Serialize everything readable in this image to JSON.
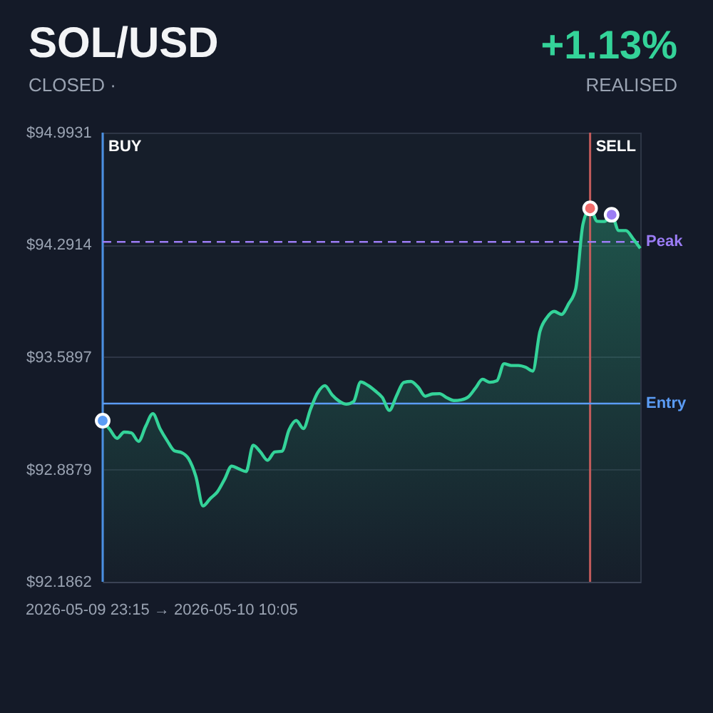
{
  "chart_data": {
    "type": "area",
    "title": "SOL/USD",
    "subtitle": "CLOSED ·",
    "annotations": [
      "+1.13%",
      "REALISED",
      "2026-05-09 23:15 → 2026-05-10 10:05"
    ],
    "categories": [
      null,
      null,
      null,
      null,
      null,
      null,
      null,
      null,
      null,
      null,
      null,
      null,
      null,
      null,
      null,
      null,
      null,
      null,
      null,
      null,
      null,
      null,
      null,
      null,
      null,
      null,
      null,
      null,
      null,
      null,
      null,
      null,
      null,
      null,
      null,
      null,
      null,
      null,
      null,
      null,
      null,
      null,
      null,
      null,
      null,
      null,
      null,
      null,
      null,
      null,
      null,
      null,
      null,
      null,
      null,
      null,
      null,
      null,
      null,
      null,
      null,
      null,
      null,
      null,
      null,
      null,
      null,
      null,
      null,
      null,
      null,
      null,
      null,
      null,
      null,
      null
    ],
    "ylim": [
      92.1862,
      94.9931
    ],
    "yticks": [
      {
        "value": 92.1862,
        "label": "$92.1862"
      },
      {
        "value": 92.8879,
        "label": "$92.8879"
      },
      {
        "value": 93.5897,
        "label": "$93.5897"
      },
      {
        "value": 94.2914,
        "label": "$94.2914"
      },
      {
        "value": 94.9931,
        "label": "$94.9931"
      }
    ],
    "tick_labels": "y",
    "grid": "y",
    "series": [
      {
        "color": "#34d399",
        "values": [
          93.193,
          93.138,
          93.083,
          93.122,
          93.117,
          93.064,
          93.158,
          93.237,
          93.143,
          93.068,
          93.005,
          92.994,
          92.954,
          92.845,
          92.66,
          92.706,
          92.748,
          92.826,
          92.909,
          92.892,
          92.875,
          93.04,
          92.998,
          92.946,
          92.998,
          93.002,
          93.135,
          93.194,
          93.144,
          93.265,
          93.368,
          93.412,
          93.355,
          93.315,
          93.296,
          93.312,
          93.435,
          93.414,
          93.38,
          93.339,
          93.258,
          93.349,
          93.432,
          93.438,
          93.403,
          93.346,
          93.36,
          93.362,
          93.337,
          93.319,
          93.323,
          93.341,
          93.396,
          93.452,
          93.433,
          93.443,
          93.549,
          93.538,
          93.538,
          93.527,
          93.503,
          93.75,
          93.839,
          93.876,
          93.857,
          93.923,
          94.019,
          94.42,
          94.52,
          94.439,
          94.438,
          94.48,
          94.381,
          94.381,
          94.33,
          94.27
        ]
      },
      {
        "type": "scatter",
        "marker": "circle",
        "color": "#5b9cf5",
        "values": [
          93.193,
          null,
          null,
          null,
          null,
          null,
          null,
          null,
          null,
          null,
          null,
          null,
          null,
          null,
          null,
          null,
          null,
          null,
          null,
          null,
          null,
          null,
          null,
          null,
          null,
          null,
          null,
          null,
          null,
          null,
          null,
          null,
          null,
          null,
          null,
          null,
          null,
          null,
          null,
          null,
          null,
          null,
          null,
          null,
          null,
          null,
          null,
          null,
          null,
          null,
          null,
          null,
          null,
          null,
          null,
          null,
          null,
          null,
          null,
          null,
          null,
          null,
          null,
          null,
          null,
          null,
          null,
          null,
          null,
          null,
          null,
          null,
          null,
          null,
          null,
          null
        ]
      },
      {
        "type": "scatter",
        "marker": "circle",
        "color": "#f06a6a",
        "values": [
          null,
          null,
          null,
          null,
          null,
          null,
          null,
          null,
          null,
          null,
          null,
          null,
          null,
          null,
          null,
          null,
          null,
          null,
          null,
          null,
          null,
          null,
          null,
          null,
          null,
          null,
          null,
          null,
          null,
          null,
          null,
          null,
          null,
          null,
          null,
          null,
          null,
          null,
          null,
          null,
          null,
          null,
          null,
          null,
          null,
          null,
          null,
          null,
          null,
          null,
          null,
          null,
          null,
          null,
          null,
          null,
          null,
          null,
          null,
          null,
          null,
          null,
          null,
          null,
          null,
          null,
          null,
          null,
          94.52,
          null,
          null,
          null,
          null,
          null,
          null,
          null
        ]
      },
      {
        "type": "scatter",
        "marker": "circle",
        "color": "#9b7cf5",
        "values": [
          null,
          null,
          null,
          null,
          null,
          null,
          null,
          null,
          null,
          null,
          null,
          null,
          null,
          null,
          null,
          null,
          null,
          null,
          null,
          null,
          null,
          null,
          null,
          null,
          null,
          null,
          null,
          null,
          null,
          null,
          null,
          null,
          null,
          null,
          null,
          null,
          null,
          null,
          null,
          null,
          null,
          null,
          null,
          null,
          null,
          null,
          null,
          null,
          null,
          null,
          null,
          null,
          null,
          null,
          null,
          null,
          null,
          null,
          null,
          null,
          null,
          null,
          null,
          null,
          null,
          null,
          null,
          null,
          null,
          null,
          null,
          94.48,
          null,
          null,
          null,
          null
        ]
      }
    ],
    "ref_lines": [
      {
        "axis": "x",
        "label": "BUY",
        "color": "#4a90e2"
      },
      {
        "axis": "x",
        "label": "SELL",
        "color": "#c25b5b"
      },
      {
        "axis": "y",
        "value": 93.3,
        "label": "Entry",
        "color": "#5b9cf5"
      },
      {
        "axis": "y",
        "value": 94.31,
        "label": "Peak",
        "color": "#9b7cf5",
        "line_style": "dashed"
      }
    ]
  }
}
